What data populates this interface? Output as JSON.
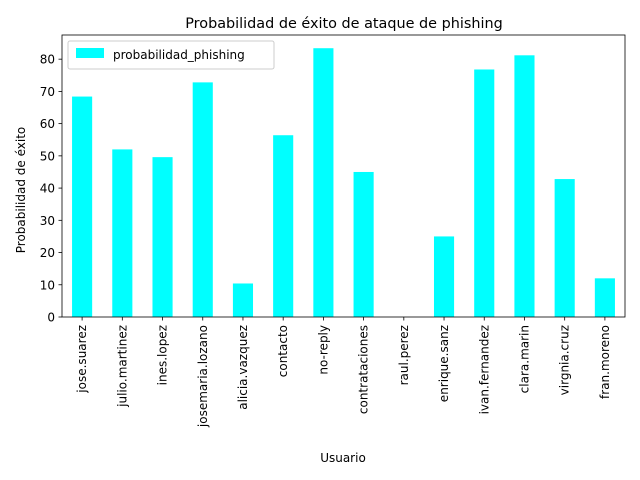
{
  "chart_data": {
    "type": "bar",
    "title": "Probabilidad de éxito de ataque de phishing",
    "xlabel": "Usuario",
    "ylabel": "Probabilidad de éxito",
    "categories": [
      "jose.suarez",
      "julio.martinez",
      "ines.lopez",
      "josemaria.lozano",
      "alicia.vazquez",
      "contacto",
      "no-reply",
      "contrataciones",
      "raul.perez",
      "enrique.sanz",
      "ivan.fernandez",
      "clara.marin",
      "virgnia.cruz",
      "fran.moreno"
    ],
    "series": [
      {
        "name": "probabilidad_phishing",
        "values": [
          68.4,
          52.0,
          49.6,
          72.8,
          10.4,
          56.4,
          83.4,
          45.0,
          0,
          25.0,
          76.8,
          81.2,
          42.8,
          12.0
        ]
      }
    ],
    "ylim": [
      0,
      87.5
    ],
    "yticks": [
      0,
      10,
      20,
      30,
      40,
      50,
      60,
      70,
      80
    ],
    "grid": false,
    "legend": "top-left",
    "bar_color": "#00ffff"
  }
}
